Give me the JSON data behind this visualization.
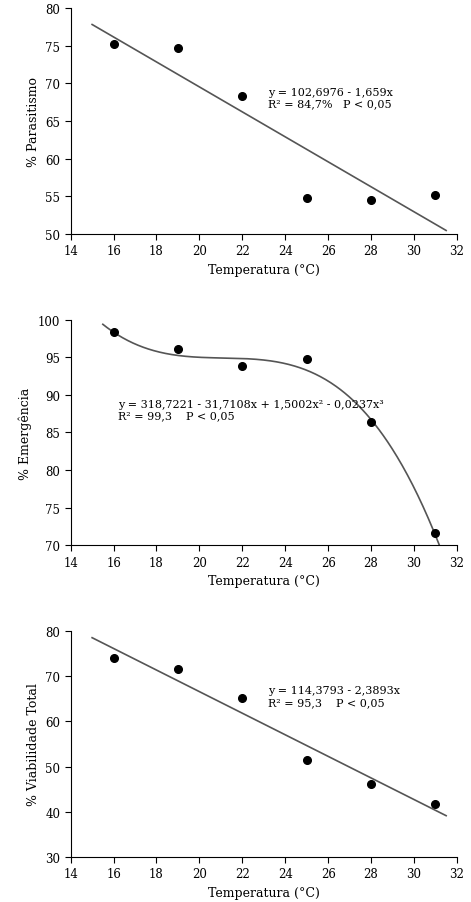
{
  "plot1": {
    "x_data": [
      16,
      19,
      22,
      25,
      28,
      31
    ],
    "y_data": [
      75.2,
      74.7,
      68.3,
      54.8,
      54.5,
      55.2
    ],
    "ylabel": "% Parasitismo",
    "ylim": [
      50,
      80
    ],
    "yticks": [
      50,
      55,
      60,
      65,
      70,
      75,
      80
    ],
    "equation": "y = 102,6976 - 1,659x",
    "r2": "R² = 84,7%   P < 0,05",
    "eq_x": 23.2,
    "eq_y": 69.5,
    "poly_coeffs": [
      102.6976,
      -1.659
    ],
    "poly_degree": 1,
    "fit_xrange": [
      15.0,
      31.5
    ]
  },
  "plot2": {
    "x_data": [
      16,
      19,
      22,
      25,
      28,
      31
    ],
    "y_data": [
      98.4,
      96.1,
      93.8,
      94.7,
      86.4,
      71.7
    ],
    "ylabel": "% Emergência",
    "ylim": [
      70,
      100
    ],
    "yticks": [
      70,
      75,
      80,
      85,
      90,
      95,
      100
    ],
    "equation": "y = 318,7221 - 31,7108x + 1,5002x² - 0,0237x³",
    "r2": "R² = 99,3    P < 0,05",
    "eq_x": 16.2,
    "eq_y": 89.5,
    "poly_coeffs": [
      318.7221,
      -31.7108,
      1.5002,
      -0.0237
    ],
    "poly_degree": 3,
    "fit_xrange": [
      15.5,
      31.5
    ]
  },
  "plot3": {
    "x_data": [
      16,
      19,
      22,
      25,
      28,
      31
    ],
    "y_data": [
      74.0,
      71.7,
      65.1,
      51.4,
      46.1,
      41.7
    ],
    "ylabel": "% Viabilidade Total",
    "ylim": [
      30,
      80
    ],
    "yticks": [
      30,
      40,
      50,
      60,
      70,
      80
    ],
    "equation": "y = 114,3793 - 2,3893x",
    "r2": "R² = 95,3    P < 0,05",
    "eq_x": 23.2,
    "eq_y": 68.0,
    "poly_coeffs": [
      114.3793,
      -2.3893
    ],
    "poly_degree": 1,
    "fit_xrange": [
      15.0,
      31.5
    ]
  },
  "xlim": [
    14,
    32
  ],
  "xticks": [
    14,
    16,
    18,
    20,
    22,
    24,
    26,
    28,
    30,
    32
  ],
  "xlabel": "Temperatura (°C)",
  "marker": "o",
  "marker_color": "black",
  "marker_size": 5.5,
  "line_color": "#555555",
  "line_width": 1.2,
  "bg_color": "white"
}
